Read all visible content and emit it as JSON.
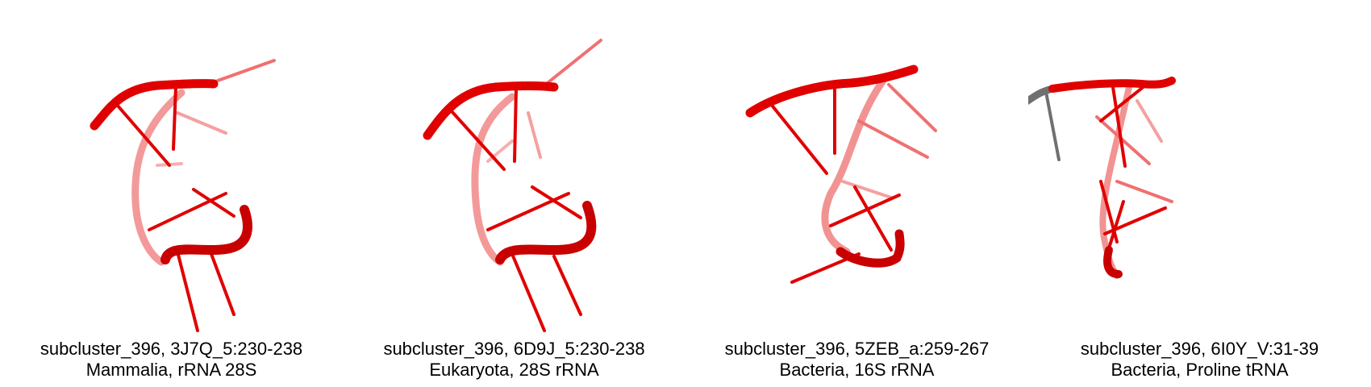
{
  "panels": [
    {
      "title": "subcluster_396, 3J7Q_5:230-238",
      "subtitle": "Mammalia, rRNA 28S",
      "structure_color": "#e00000"
    },
    {
      "title": "subcluster_396, 6D9J_5:230-238",
      "subtitle": "Eukaryota, 28S rRNA",
      "structure_color": "#e00000"
    },
    {
      "title": "subcluster_396, 5ZEB_a:259-267",
      "subtitle": "Bacteria, 16S rRNA",
      "structure_color": "#e00000"
    },
    {
      "title": "subcluster_396, 6I0Y_V:31-39",
      "subtitle": "Bacteria, Proline tRNA",
      "structure_color": "#e00000",
      "accent_color": "#707070"
    }
  ]
}
